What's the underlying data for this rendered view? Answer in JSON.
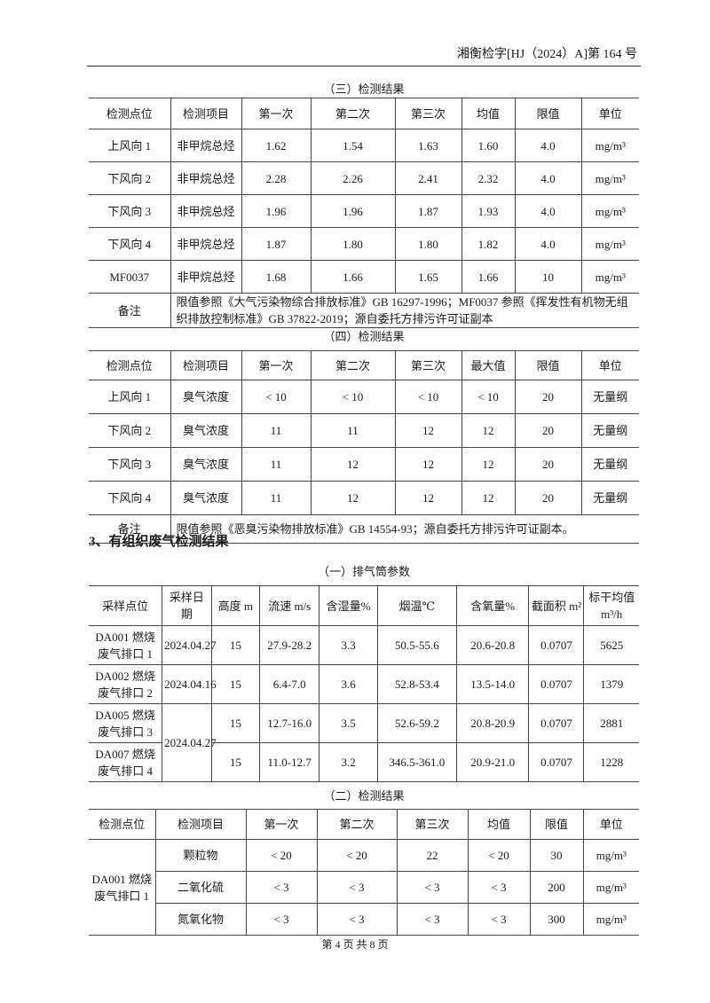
{
  "header": {
    "doc_number": "湘衡检字[HJ（2024）A]第 164 号"
  },
  "table3": {
    "caption": "（三）检测结果",
    "headers": [
      "检测点位",
      "检测项目",
      "第一次",
      "第二次",
      "第三次",
      "均值",
      "限值",
      "单位"
    ],
    "rows": [
      [
        "上风向 1",
        "非甲烷总烃",
        "1.62",
        "1.54",
        "1.63",
        "1.60",
        "4.0",
        "mg/m³"
      ],
      [
        "下风向 2",
        "非甲烷总烃",
        "2.28",
        "2.26",
        "2.41",
        "2.32",
        "4.0",
        "mg/m³"
      ],
      [
        "下风向 3",
        "非甲烷总烃",
        "1.96",
        "1.96",
        "1.87",
        "1.93",
        "4.0",
        "mg/m³"
      ],
      [
        "下风向 4",
        "非甲烷总烃",
        "1.87",
        "1.80",
        "1.80",
        "1.82",
        "4.0",
        "mg/m³"
      ],
      [
        "MF0037",
        "非甲烷总烃",
        "1.68",
        "1.66",
        "1.65",
        "1.66",
        "10",
        "mg/m³"
      ]
    ],
    "note_label": "备注",
    "note": "限值参照《大气污染物综合排放标准》GB 16297-1996；MF0037 参照《挥发性有机物无组织排放控制标准》GB 37822-2019；源自委托方排污许可证副本"
  },
  "table4": {
    "caption": "（四）检测结果",
    "headers": [
      "检测点位",
      "检测项目",
      "第一次",
      "第二次",
      "第三次",
      "最大值",
      "限值",
      "单位"
    ],
    "rows": [
      [
        "上风向 1",
        "臭气浓度",
        "< 10",
        "< 10",
        "< 10",
        "< 10",
        "20",
        "无量纲"
      ],
      [
        "下风向 2",
        "臭气浓度",
        "11",
        "11",
        "12",
        "12",
        "20",
        "无量纲"
      ],
      [
        "下风向 3",
        "臭气浓度",
        "11",
        "12",
        "12",
        "12",
        "20",
        "无量纲"
      ],
      [
        "下风向 4",
        "臭气浓度",
        "11",
        "12",
        "12",
        "12",
        "20",
        "无量纲"
      ]
    ],
    "note_label": "备注",
    "note": "限值参照《恶臭污染物排放标准》GB 14554-93；源自委托方排污许可证副本。"
  },
  "section3": {
    "title": "3、有组织废气检测结果"
  },
  "stack": {
    "caption": "（一）排气筒参数",
    "headers": [
      "采样点位",
      "采样日期",
      "高度 m",
      "流速 m/s",
      "含湿量%",
      "烟温℃",
      "含氧量%",
      "截面积 m²",
      "标干均值 m³/h"
    ],
    "rows": [
      [
        "DA001 燃烧废气排口 1",
        "2024.04.27",
        "15",
        "27.9-28.2",
        "3.3",
        "50.5-55.6",
        "20.6-20.8",
        "0.0707",
        "5625"
      ],
      [
        "DA002 燃烧废气排口 2",
        "2024.04.16",
        "15",
        "6.4-7.0",
        "3.6",
        "52.8-53.4",
        "13.5-14.0",
        "0.0707",
        "1379"
      ],
      [
        "DA005 燃烧废气排口 3",
        "2024.04.27",
        "15",
        "12.7-16.0",
        "3.5",
        "52.6-59.2",
        "20.8-20.9",
        "0.0707",
        "2881"
      ],
      [
        "DA007 燃烧废气排口 4",
        "",
        "15",
        "11.0-12.7",
        "3.2",
        "346.5-361.0",
        "20.9-21.0",
        "0.0707",
        "1228"
      ]
    ]
  },
  "result2": {
    "caption": "（二）检测结果",
    "headers": [
      "检测点位",
      "检测项目",
      "第一次",
      "第二次",
      "第三次",
      "均值",
      "限值",
      "单位"
    ],
    "point": "DA001 燃烧废气排口 1",
    "rows": [
      [
        "颗粒物",
        "< 20",
        "< 20",
        "22",
        "< 20",
        "30",
        "mg/m³"
      ],
      [
        "二氧化硫",
        "< 3",
        "< 3",
        "< 3",
        "< 3",
        "200",
        "mg/m³"
      ],
      [
        "氮氧化物",
        "< 3",
        "< 3",
        "< 3",
        "< 3",
        "300",
        "mg/m³"
      ]
    ]
  },
  "footer": {
    "page": "第 4 页 共 8 页"
  }
}
